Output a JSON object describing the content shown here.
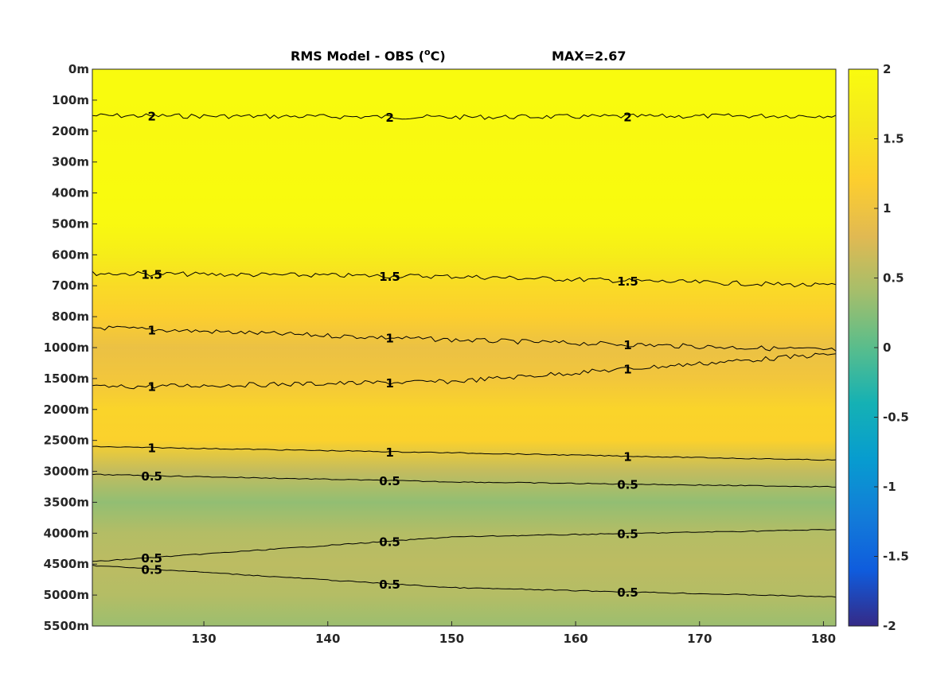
{
  "chart_data": {
    "type": "heatmap",
    "title": "RMS Model - OBS (",
    "title_sup": "o",
    "title_unit": "C)",
    "max_label": "MAX=2.67",
    "xlabel": "",
    "ylabel": "",
    "xlim": [
      121,
      181
    ],
    "x_ticks": [
      130,
      140,
      150,
      160,
      170,
      180
    ],
    "y_tick_labels": [
      "0m",
      "100m",
      "200m",
      "300m",
      "400m",
      "500m",
      "600m",
      "700m",
      "800m",
      "1000m",
      "1500m",
      "2000m",
      "2500m",
      "3000m",
      "3500m",
      "4000m",
      "4500m",
      "5000m",
      "5500m"
    ],
    "colorbar": {
      "min": -2,
      "max": 2,
      "ticks": [
        2,
        1.5,
        1,
        0.5,
        0,
        -0.5,
        -1,
        -1.5,
        -2
      ],
      "tick_labels": [
        "2",
        "1.5",
        "1",
        "0.5",
        "0",
        "-0.5",
        "-1",
        "-1.5",
        "-2"
      ],
      "colormap": "parula"
    },
    "depth_profile": [
      {
        "depth": "0m",
        "value": 2.3
      },
      {
        "depth": "100m",
        "value": 2.1
      },
      {
        "depth": "200m",
        "value": 1.95
      },
      {
        "depth": "300m",
        "value": 1.97
      },
      {
        "depth": "400m",
        "value": 2.0
      },
      {
        "depth": "500m",
        "value": 1.95
      },
      {
        "depth": "600m",
        "value": 1.7
      },
      {
        "depth": "700m",
        "value": 1.4
      },
      {
        "depth": "800m",
        "value": 1.2
      },
      {
        "depth": "1000m",
        "value": 0.95
      },
      {
        "depth": "1500m",
        "value": 1.05
      },
      {
        "depth": "2000m",
        "value": 1.3
      },
      {
        "depth": "2500m",
        "value": 1.25
      },
      {
        "depth": "3000m",
        "value": 0.6
      },
      {
        "depth": "3500m",
        "value": 0.3
      },
      {
        "depth": "4000m",
        "value": 0.5
      },
      {
        "depth": "4500m",
        "value": 0.55
      },
      {
        "depth": "5000m",
        "value": 0.5
      },
      {
        "depth": "5500m",
        "value": 0.35
      }
    ],
    "contours": [
      {
        "level": "2",
        "depth_at_x": [
          [
            121,
            "150m"
          ],
          [
            150,
            "155m"
          ],
          [
            181,
            "150m"
          ]
        ]
      },
      {
        "level": "1.5",
        "depth_at_x": [
          [
            121,
            "660m"
          ],
          [
            150,
            "670m"
          ],
          [
            181,
            "700m"
          ]
        ]
      },
      {
        "level": "1",
        "depth_at_x": [
          [
            121,
            "870m"
          ],
          [
            150,
            "950m"
          ],
          [
            181,
            "1040m"
          ]
        ]
      },
      {
        "level": "1",
        "depth_at_x": [
          [
            121,
            "1640m"
          ],
          [
            150,
            "1550m"
          ],
          [
            181,
            "1100m"
          ]
        ]
      },
      {
        "level": "1",
        "depth_at_x": [
          [
            121,
            "2600m"
          ],
          [
            150,
            "2700m"
          ],
          [
            181,
            "2820m"
          ]
        ]
      },
      {
        "level": "0.5",
        "depth_at_x": [
          [
            121,
            "3050m"
          ],
          [
            150,
            "3170m"
          ],
          [
            181,
            "3250m"
          ]
        ]
      },
      {
        "level": "0.5",
        "depth_at_x": [
          [
            121,
            "4460m"
          ],
          [
            150,
            "4060m"
          ],
          [
            181,
            "3940m"
          ]
        ]
      },
      {
        "level": "0.5",
        "depth_at_x": [
          [
            121,
            "4520m"
          ],
          [
            150,
            "4880m"
          ],
          [
            181,
            "5030m"
          ]
        ]
      }
    ]
  }
}
